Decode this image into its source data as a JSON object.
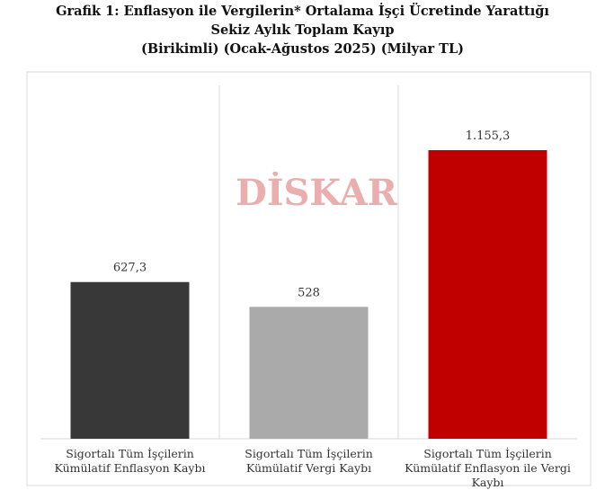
{
  "chart_data": {
    "type": "bar",
    "title": [
      "Grafik 1: Enflasyon ile Vergilerin* Ortalama İşçi Ücretinde Yarattığı",
      "Sekiz Aylık Toplam Kayıp",
      "(Birikimli) (Ocak-Ağustos 2025) (Milyar TL)"
    ],
    "watermark": "DİSKAR",
    "categories": [
      "Sigortalı Tüm İşçilerin Kümülatif Enflasyon Kaybı",
      "Sigortalı Tüm İşçilerin Kümülatif Vergi Kaybı",
      "Sigortalı Tüm İşçilerin Kümülatif Enflasyon ile Vergi Kaybı"
    ],
    "values": [
      627.3,
      528,
      1155.3
    ],
    "value_labels": [
      "627,3",
      "528",
      "1.155,3"
    ],
    "colors": [
      "#383838",
      "#aaaaaa",
      "#c00000"
    ]
  }
}
